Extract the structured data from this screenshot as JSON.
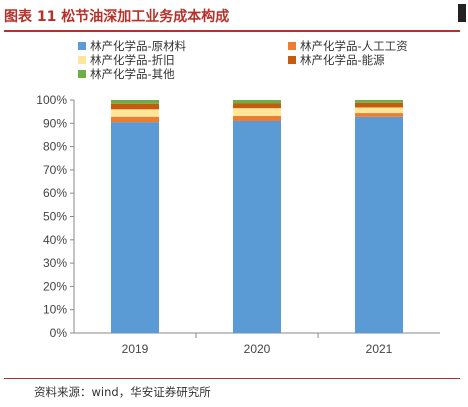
{
  "header": {
    "title": "图表 11  松节油深加工业务成本构成"
  },
  "source": {
    "text": "资料来源：wind，华安证券研究所"
  },
  "colors": {
    "title_red": "#b5322b",
    "raw_material": "#5b9bd5",
    "labor": "#ed7d31",
    "depreciation": "#ffe699",
    "energy": "#c55a11",
    "other": "#70ad47"
  },
  "chart_data": {
    "type": "bar",
    "stacked": true,
    "categories": [
      "2019",
      "2020",
      "2021"
    ],
    "series": [
      {
        "name": "林产化学品-原材料",
        "color": "#5b9bd5",
        "values": [
          90.5,
          91.0,
          92.8
        ]
      },
      {
        "name": "林产化学品-人工工资",
        "color": "#ed7d31",
        "values": [
          2.3,
          2.2,
          1.6
        ]
      },
      {
        "name": "林产化学品-折旧",
        "color": "#ffe699",
        "values": [
          3.2,
          3.3,
          2.4
        ]
      },
      {
        "name": "林产化学品-能源",
        "color": "#c55a11",
        "values": [
          2.4,
          2.0,
          2.0
        ]
      },
      {
        "name": "林产化学品-其他",
        "color": "#70ad47",
        "values": [
          1.6,
          1.5,
          1.2
        ]
      }
    ],
    "ylim": [
      0,
      100
    ],
    "yticks": [
      "0%",
      "10%",
      "20%",
      "30%",
      "40%",
      "50%",
      "60%",
      "70%",
      "80%",
      "90%",
      "100%"
    ],
    "grid": false,
    "legend": "top"
  }
}
